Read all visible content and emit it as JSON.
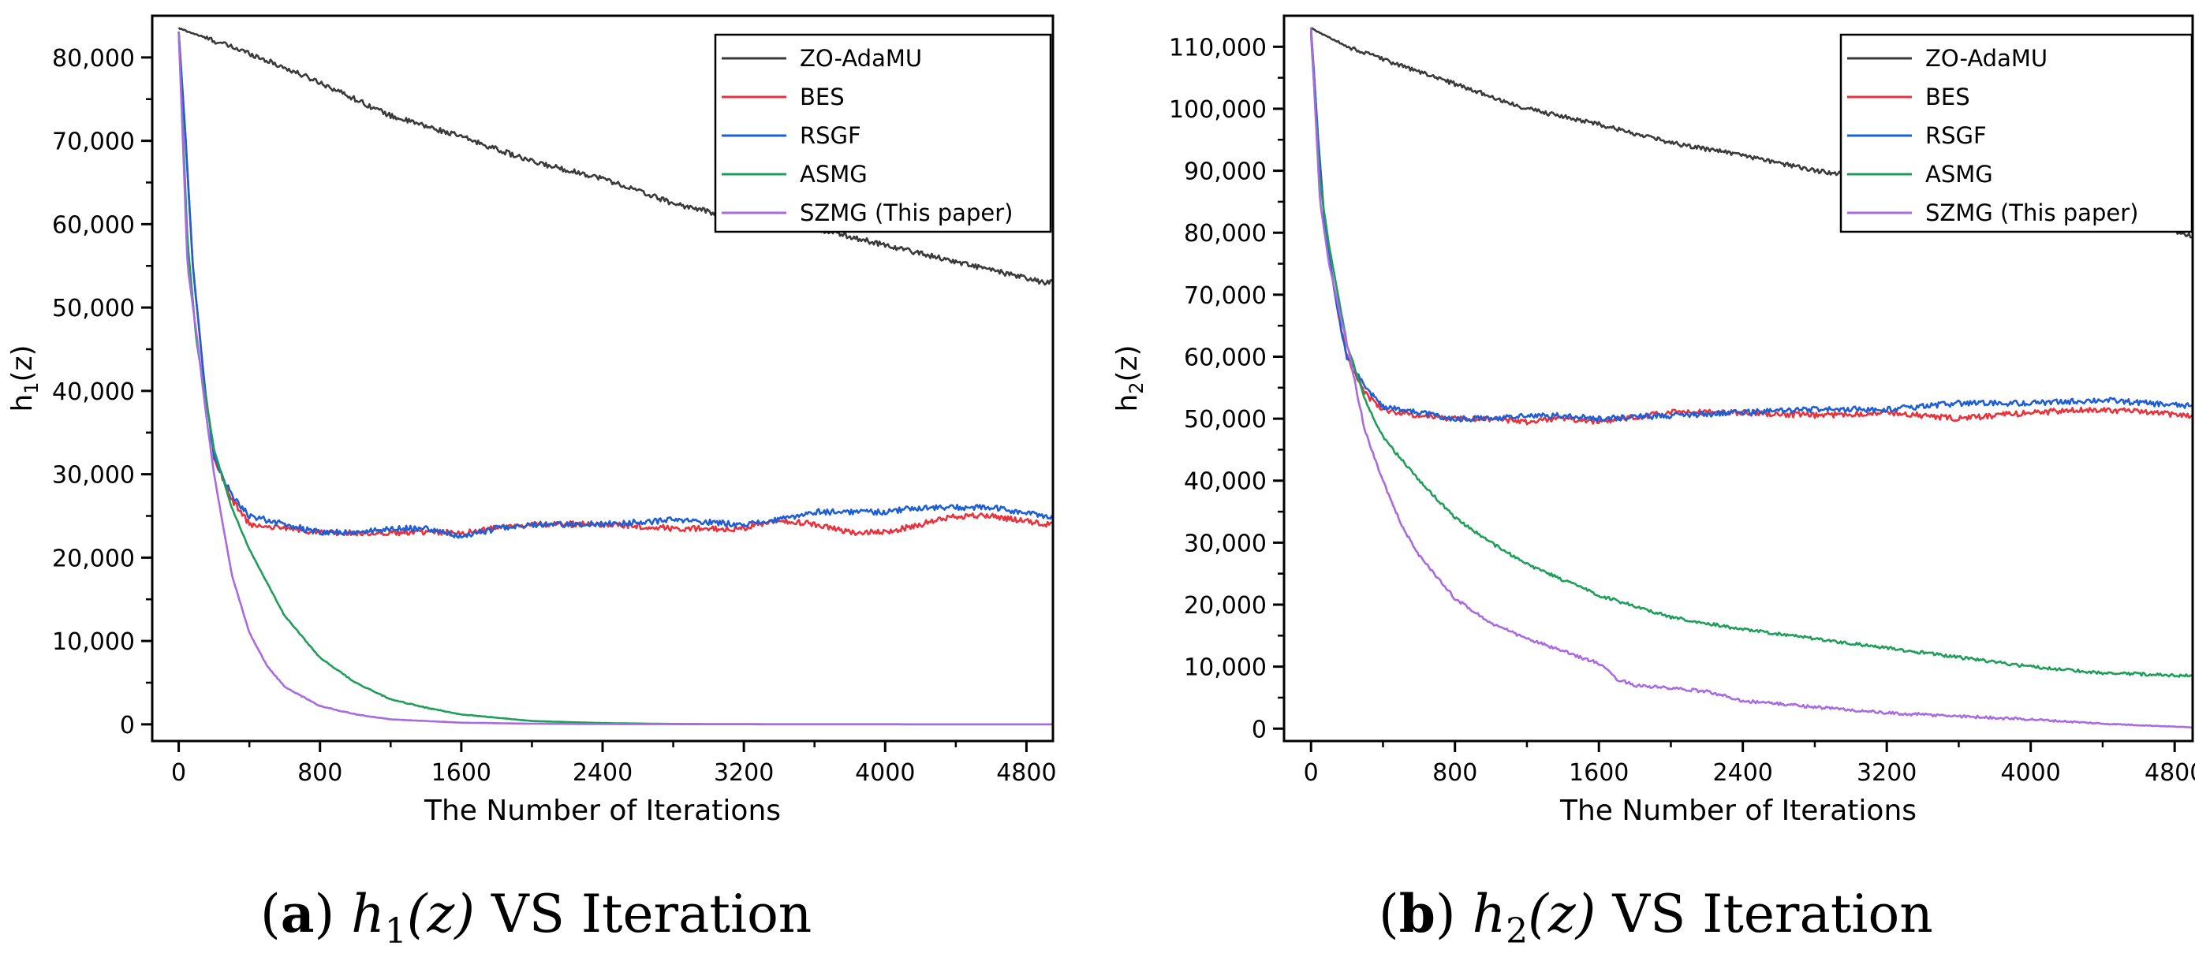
{
  "charts": [
    {
      "y_axis_label": {
        "main": "h",
        "sub": "1",
        "suffix": "(z)"
      },
      "x_axis_label": "The Number of Iterations",
      "caption": {
        "letter": "a",
        "func": "h",
        "sub": "1",
        "arg": "(z)",
        "rest": " VS Iteration"
      }
    },
    {
      "y_axis_label": {
        "main": "h",
        "sub": "2",
        "suffix": "(z)"
      },
      "x_axis_label": "The Number of Iterations",
      "caption": {
        "letter": "b",
        "func": "h",
        "sub": "2",
        "arg": "(z)",
        "rest": " VS Iteration"
      }
    }
  ],
  "chart_data": [
    {
      "type": "line",
      "xlabel": "The Number of Iterations",
      "ylabel": "h1(z)",
      "xlim": [
        -150,
        4950
      ],
      "ylim": [
        -2000,
        85000
      ],
      "xticks": [
        0,
        800,
        1600,
        2400,
        3200,
        4000,
        4800
      ],
      "xtick_labels": [
        "0",
        "800",
        "1600",
        "2400",
        "3200",
        "4000",
        "4800"
      ],
      "yticks": [
        0,
        10000,
        20000,
        30000,
        40000,
        50000,
        60000,
        70000,
        80000
      ],
      "ytick_labels": [
        "0",
        "10,000",
        "20,000",
        "30,000",
        "40,000",
        "50,000",
        "60,000",
        "70,000",
        "80,000"
      ],
      "legend_position": "top-right",
      "series": [
        {
          "name": "ZO-AdaMU",
          "color": "#3a3a3a",
          "x": [
            0,
            200,
            400,
            800,
            1200,
            1600,
            2000,
            2400,
            2800,
            3200,
            3600,
            4000,
            4400,
            4900
          ],
          "y": [
            83500,
            82000,
            80500,
            77000,
            73000,
            70500,
            67500,
            65500,
            62500,
            60500,
            59500,
            57500,
            55500,
            53000
          ]
        },
        {
          "name": "BES",
          "color": "#e8323c",
          "x": [
            0,
            40,
            80,
            150,
            200,
            300,
            400,
            600,
            800,
            1000,
            1200,
            1400,
            1600,
            1800,
            2000,
            2400,
            2800,
            3200,
            3400,
            3600,
            3800,
            4000,
            4200,
            4400,
            4600,
            4900
          ],
          "y": [
            83000,
            70000,
            55000,
            40000,
            32000,
            27000,
            24000,
            23500,
            23000,
            23000,
            23000,
            23000,
            23000,
            23500,
            24000,
            24000,
            23500,
            23500,
            24500,
            24000,
            23000,
            23000,
            24000,
            25000,
            25000,
            24000
          ]
        },
        {
          "name": "RSGF",
          "color": "#1f5fd6",
          "x": [
            0,
            40,
            80,
            150,
            200,
            300,
            400,
            600,
            800,
            1000,
            1200,
            1400,
            1600,
            1800,
            2000,
            2400,
            2800,
            3200,
            3400,
            3600,
            3800,
            4000,
            4200,
            4400,
            4600,
            4900
          ],
          "y": [
            83000,
            70000,
            55000,
            40000,
            32000,
            27500,
            25000,
            24000,
            23000,
            23000,
            23500,
            23500,
            22500,
            23500,
            24000,
            24000,
            24500,
            24000,
            24500,
            25500,
            25500,
            25500,
            26000,
            26000,
            26000,
            25000
          ]
        },
        {
          "name": "ASMG",
          "color": "#1f9e5a",
          "x": [
            0,
            50,
            100,
            200,
            300,
            400,
            600,
            800,
            1000,
            1200,
            1400,
            1600,
            2000,
            2400,
            2800,
            3200,
            4000,
            4900
          ],
          "y": [
            83000,
            58000,
            46000,
            33000,
            26000,
            21000,
            13000,
            8000,
            5000,
            3000,
            2000,
            1200,
            400,
            150,
            50,
            20,
            10,
            5
          ]
        },
        {
          "name": "SZMG (This paper)",
          "color": "#a96be0",
          "x": [
            0,
            50,
            100,
            150,
            200,
            300,
            400,
            500,
            600,
            800,
            1000,
            1200,
            1600,
            2000,
            2400,
            3200,
            4000,
            4900
          ],
          "y": [
            83000,
            55000,
            47000,
            38000,
            30000,
            18000,
            11000,
            7000,
            4500,
            2200,
            1200,
            600,
            200,
            80,
            30,
            10,
            5,
            5
          ]
        }
      ]
    },
    {
      "type": "line",
      "xlabel": "The Number of Iterations",
      "ylabel": "h2(z)",
      "xlim": [
        -150,
        4900
      ],
      "ylim": [
        -2000,
        115000
      ],
      "xticks": [
        0,
        800,
        1600,
        2400,
        3200,
        4000,
        4800
      ],
      "xtick_labels": [
        "0",
        "800",
        "1600",
        "2400",
        "3200",
        "4000",
        "4800"
      ],
      "yticks": [
        0,
        10000,
        20000,
        30000,
        40000,
        50000,
        60000,
        70000,
        80000,
        90000,
        100000,
        110000
      ],
      "ytick_labels": [
        "0",
        "10,000",
        "20,000",
        "30,000",
        "40,000",
        "50,000",
        "60,000",
        "70,000",
        "80,000",
        "90,000",
        "100,000",
        "110,000"
      ],
      "legend_position": "top-right",
      "series": [
        {
          "name": "ZO-AdaMU",
          "color": "#3a3a3a",
          "x": [
            0,
            200,
            400,
            800,
            1200,
            1600,
            2000,
            2400,
            2800,
            3200,
            3600,
            4000,
            4400,
            4900
          ],
          "y": [
            113000,
            110000,
            108000,
            104000,
            100000,
            97500,
            94500,
            92500,
            90000,
            88500,
            87000,
            85000,
            83000,
            79500
          ]
        },
        {
          "name": "BES",
          "color": "#e8323c",
          "x": [
            0,
            40,
            80,
            150,
            200,
            300,
            400,
            600,
            800,
            1000,
            1200,
            1400,
            1600,
            2000,
            2400,
            2800,
            3200,
            3600,
            4000,
            4400,
            4900
          ],
          "y": [
            113000,
            95000,
            80000,
            67000,
            60000,
            54000,
            51500,
            50500,
            50000,
            50000,
            49500,
            50000,
            49500,
            51000,
            51000,
            50500,
            51000,
            50000,
            51000,
            51500,
            50500
          ]
        },
        {
          "name": "RSGF",
          "color": "#1f5fd6",
          "x": [
            0,
            40,
            80,
            150,
            200,
            300,
            400,
            600,
            800,
            1000,
            1200,
            1400,
            1600,
            2000,
            2400,
            2800,
            3200,
            3600,
            4000,
            4400,
            4900
          ],
          "y": [
            113000,
            95000,
            80000,
            67000,
            60000,
            55000,
            52000,
            51000,
            50000,
            50000,
            50500,
            50500,
            50000,
            50500,
            51000,
            51500,
            51500,
            52500,
            52500,
            53000,
            52000
          ]
        },
        {
          "name": "ASMG",
          "color": "#1f9e5a",
          "x": [
            0,
            50,
            100,
            200,
            300,
            400,
            600,
            800,
            1000,
            1200,
            1400,
            1600,
            2000,
            2400,
            2800,
            3200,
            3600,
            4000,
            4400,
            4900
          ],
          "y": [
            112000,
            88000,
            78000,
            62000,
            53000,
            47000,
            40000,
            34000,
            30000,
            26500,
            24000,
            21500,
            18000,
            16000,
            14500,
            13000,
            11500,
            10000,
            9000,
            8500
          ]
        },
        {
          "name": "SZMG (This paper)",
          "color": "#a96be0",
          "x": [
            0,
            50,
            100,
            200,
            300,
            400,
            500,
            600,
            800,
            1000,
            1200,
            1400,
            1600,
            1700,
            1800,
            2000,
            2200,
            2400,
            2800,
            3200,
            3600,
            4000,
            4400,
            4900
          ],
          "y": [
            113000,
            85000,
            75000,
            62000,
            48000,
            40000,
            33000,
            28000,
            21000,
            17000,
            14500,
            12500,
            10500,
            8000,
            7000,
            6500,
            6000,
            4500,
            3500,
            2500,
            2000,
            1500,
            800,
            200
          ]
        }
      ]
    }
  ]
}
